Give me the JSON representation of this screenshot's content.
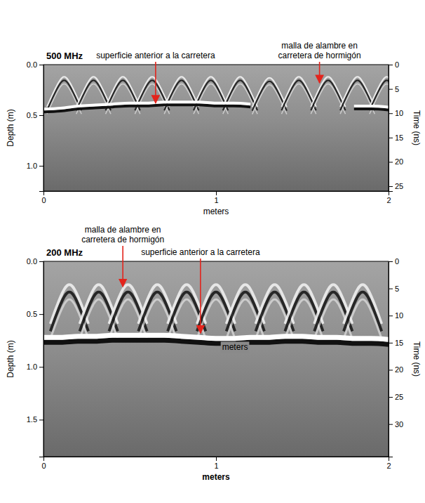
{
  "chart_data": [
    {
      "type": "radargram",
      "title": "500 MHz",
      "x_label": "meters",
      "y_label": "Depth (m)",
      "y2_label": "Time (ns)",
      "xlim": [
        0,
        2
      ],
      "xticks": [
        0,
        1,
        2
      ],
      "ylim": [
        0,
        1.25
      ],
      "yticks": [
        {
          "value": 0,
          "label": "0.0"
        },
        0.5,
        {
          "value": 1,
          "label": "1.0"
        }
      ],
      "y2lim": [
        0,
        26
      ],
      "y2ticks": [
        0,
        5,
        10,
        15,
        20,
        25
      ],
      "series": [
        {
          "type": "hyperbola",
          "color": "#f2f2f2",
          "x": [
            0.12,
            0.29,
            0.46,
            0.63,
            0.8,
            0.97,
            1.14,
            1.31,
            1.48,
            1.65,
            1.82,
            1.99
          ],
          "values": [
            0.12,
            0.12,
            0.12,
            0.12,
            0.12,
            0.12,
            0.12,
            0.13,
            0.12,
            0.12,
            0.12,
            0.12
          ]
        },
        {
          "type": "line",
          "color": "#ffffff",
          "x": [
            0,
            0.1,
            0.2,
            0.3,
            0.4,
            0.5,
            0.6,
            0.7,
            0.8,
            0.9,
            1.0,
            1.1,
            1.2,
            1.3,
            1.4,
            1.5,
            1.6,
            1.7,
            1.8,
            1.9,
            2.0
          ],
          "values": [
            0.44,
            0.43,
            0.41,
            0.4,
            0.39,
            0.38,
            0.38,
            0.37,
            0.37,
            0.37,
            0.38,
            0.38,
            0.39,
            null,
            null,
            null,
            null,
            null,
            0.41,
            0.41,
            0.42
          ]
        }
      ],
      "annotations": [
        {
          "text": "superficie anterior a la carretera",
          "x": 0.65,
          "y": 0.38
        },
        {
          "text": "malla de alambre en carretera de hormigón",
          "x": 1.6,
          "y": 0.18
        }
      ]
    },
    {
      "type": "radargram",
      "title": "200 MHz",
      "x_label": "meters",
      "y_label": "Depth (m)",
      "y2_label": "Time (ns)",
      "xlim": [
        0,
        2
      ],
      "xticks": [
        0,
        1,
        2
      ],
      "ylim": [
        0,
        1.85
      ],
      "yticks": [
        {
          "value": 0,
          "label": "0.0"
        },
        0.5,
        {
          "value": 1,
          "label": "1.0"
        },
        1.5
      ],
      "y2lim": [
        0,
        36
      ],
      "y2ticks": [
        0,
        5,
        10,
        15,
        20,
        25,
        30
      ],
      "series": [
        {
          "type": "hyperbola",
          "color": "#eeeeee",
          "x": [
            0.15,
            0.32,
            0.49,
            0.66,
            0.83,
            1.0,
            1.17,
            1.34,
            1.51,
            1.68,
            1.85
          ],
          "values": [
            0.22,
            0.22,
            0.22,
            0.22,
            0.22,
            0.22,
            0.22,
            0.22,
            0.22,
            0.22,
            0.22
          ]
        },
        {
          "type": "line",
          "color": "#ffffff",
          "x": [
            0,
            0.1,
            0.2,
            0.3,
            0.4,
            0.5,
            0.6,
            0.7,
            0.8,
            0.9,
            1.0,
            1.1,
            1.2,
            1.3,
            1.4,
            1.5,
            1.6,
            1.7,
            1.8,
            1.9,
            2.0
          ],
          "values": [
            0.72,
            0.72,
            0.71,
            0.71,
            0.7,
            0.7,
            0.7,
            0.7,
            0.71,
            0.72,
            0.73,
            0.73,
            0.72,
            0.72,
            0.71,
            0.71,
            0.72,
            0.72,
            0.73,
            0.73,
            0.74
          ]
        }
      ],
      "annotations": [
        {
          "text": "malla de alambre en carretera de hormigón",
          "x": 0.46,
          "y": 0.24
        },
        {
          "text": "superficie anterior a la carretera",
          "x": 0.91,
          "y": 0.68
        }
      ],
      "labels": [
        {
          "text": "meters",
          "x": 1.11,
          "y": 0.82
        }
      ]
    }
  ]
}
